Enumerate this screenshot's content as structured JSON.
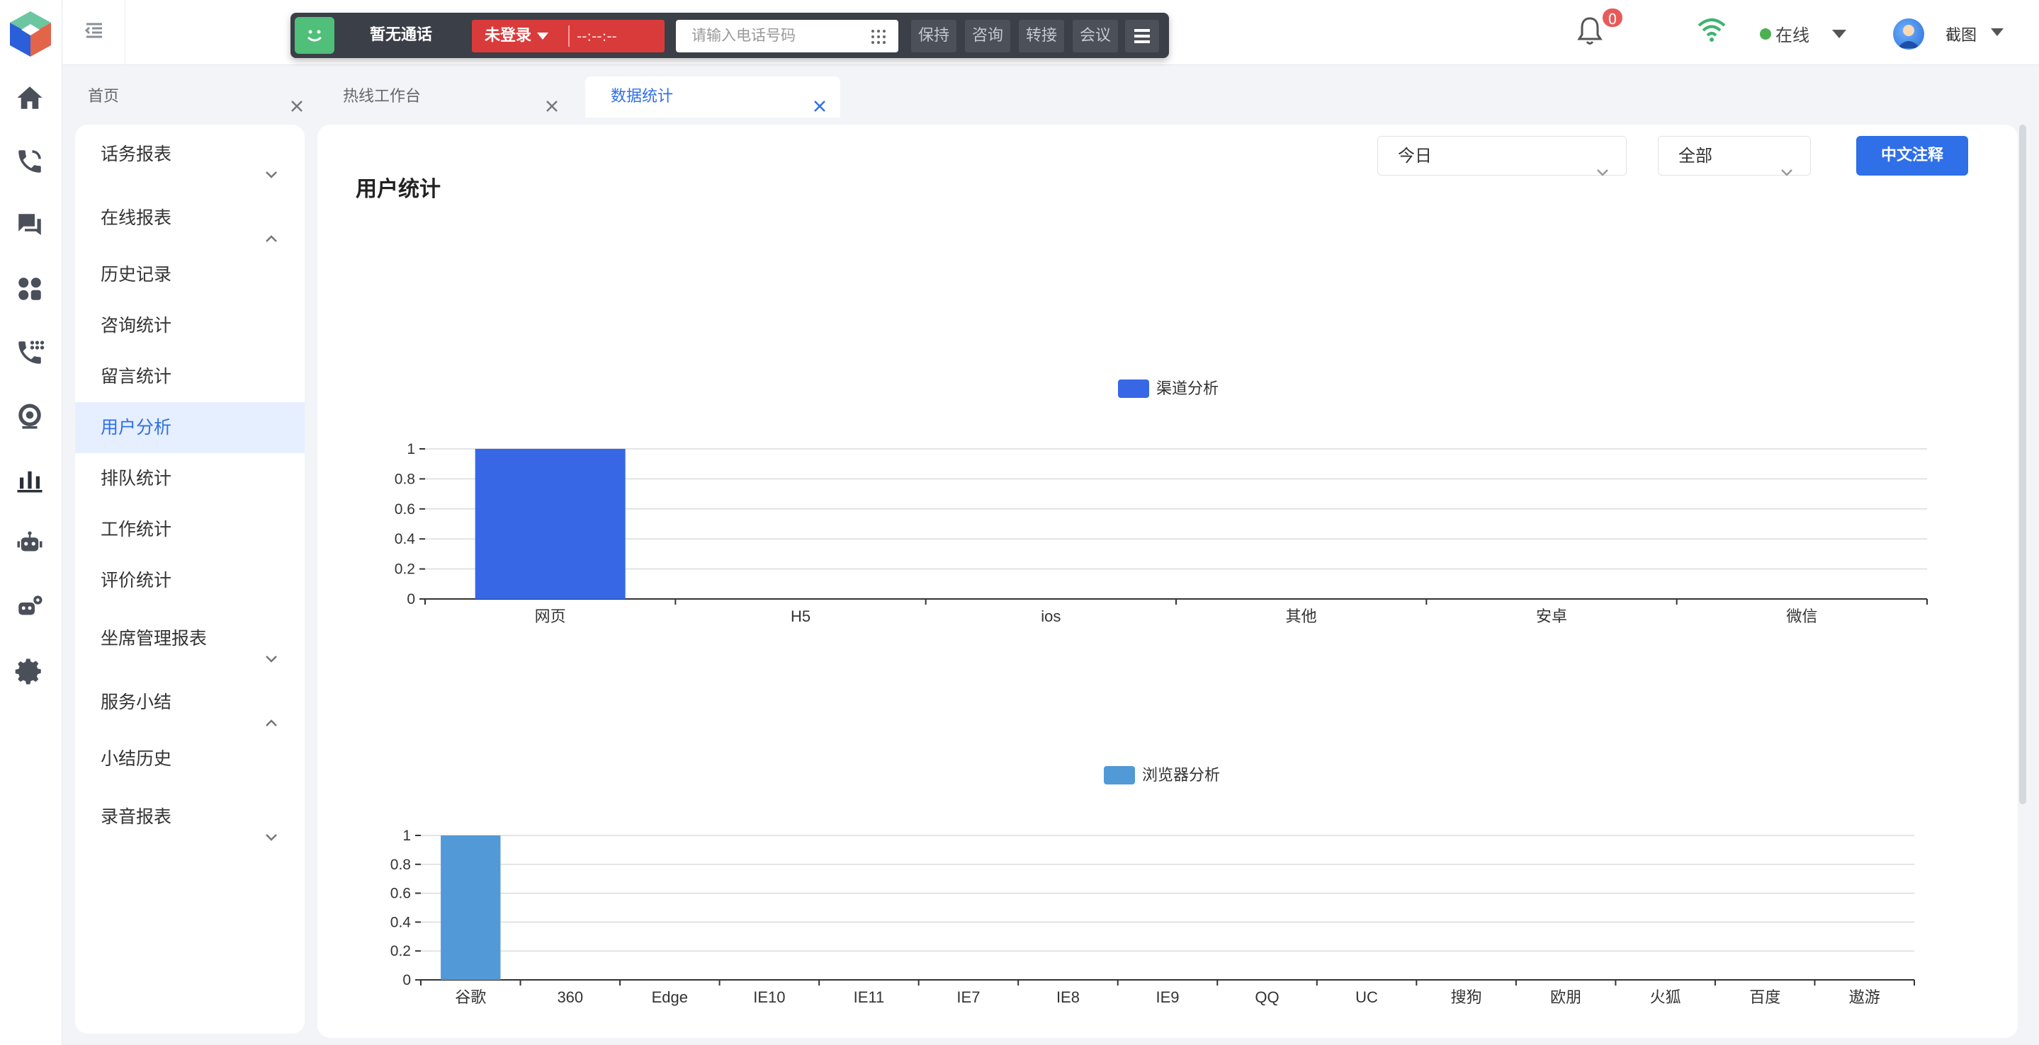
{
  "topbar": {
    "call_status": "暂无通话",
    "login_status": "未登录",
    "call_timer": "--:--:--",
    "phone_placeholder": "请输入电话号码",
    "buttons": [
      "保持",
      "咨询",
      "转接",
      "会议"
    ],
    "notification_count": "0",
    "presence": "在线",
    "user_name": "截图"
  },
  "tabs": [
    {
      "label": "首页"
    },
    {
      "label": "热线工作台"
    },
    {
      "label": "数据统计"
    }
  ],
  "sidebar": {
    "items": [
      {
        "label": "话务报表",
        "chevron": "down"
      },
      {
        "label": "在线报表",
        "chevron": "up"
      },
      {
        "label": "历史记录"
      },
      {
        "label": "咨询统计"
      },
      {
        "label": "留言统计"
      },
      {
        "label": "用户分析",
        "active": true
      },
      {
        "label": "排队统计"
      },
      {
        "label": "工作统计"
      },
      {
        "label": "评价统计"
      },
      {
        "label": "坐席管理报表",
        "chevron": "down"
      },
      {
        "label": "服务小结",
        "chevron": "up"
      },
      {
        "label": "小结历史"
      },
      {
        "label": "录音报表",
        "chevron": "down"
      }
    ]
  },
  "main": {
    "title": "用户统计",
    "date_filter": "今日",
    "scope_filter": "全部",
    "action_button": "中文注释"
  },
  "colors": {
    "accent": "#2f6fe8",
    "series1": "#3867e6",
    "series2": "#5299d8"
  },
  "chart_data": [
    {
      "type": "bar",
      "title": "",
      "legend": [
        "渠道分析"
      ],
      "categories": [
        "网页",
        "H5",
        "ios",
        "其他",
        "安卓",
        "微信"
      ],
      "series": [
        {
          "name": "渠道分析",
          "values": [
            1,
            0,
            0,
            0,
            0,
            0
          ]
        }
      ],
      "ylim": [
        0,
        1
      ],
      "yticks": [
        "0",
        "0.2",
        "0.4",
        "0.6",
        "0.8",
        "1"
      ],
      "grid": true,
      "legend_position": "top-center"
    },
    {
      "type": "bar",
      "title": "",
      "legend": [
        "浏览器分析"
      ],
      "categories": [
        "谷歌",
        "360",
        "Edge",
        "IE10",
        "IE11",
        "IE7",
        "IE8",
        "IE9",
        "QQ",
        "UC",
        "搜狗",
        "欧朋",
        "火狐",
        "百度",
        "遨游"
      ],
      "series": [
        {
          "name": "浏览器分析",
          "values": [
            1,
            0,
            0,
            0,
            0,
            0,
            0,
            0,
            0,
            0,
            0,
            0,
            0,
            0,
            0
          ]
        }
      ],
      "ylim": [
        0,
        1
      ],
      "yticks": [
        "0",
        "0.2",
        "0.4",
        "0.6",
        "0.8",
        "1"
      ],
      "grid": true,
      "legend_position": "top-center"
    }
  ]
}
